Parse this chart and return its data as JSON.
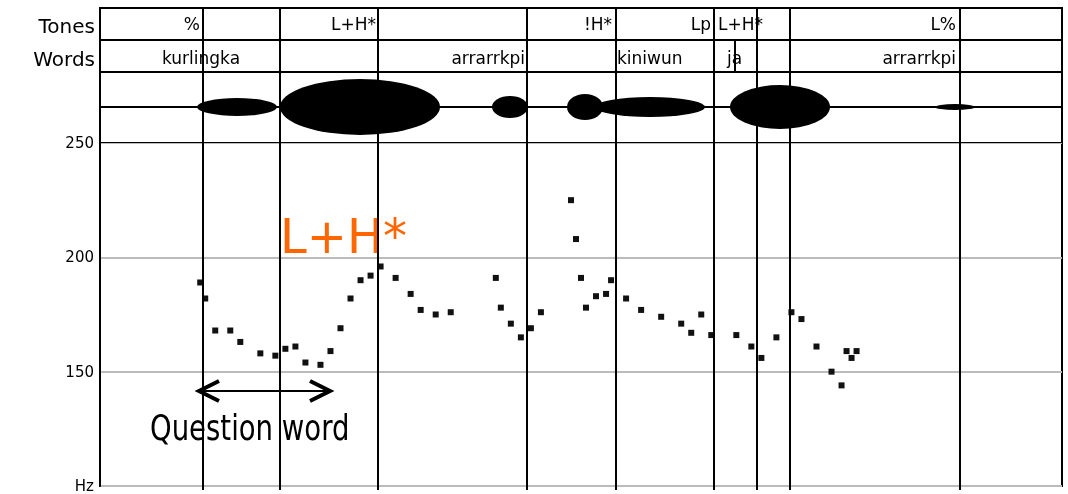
{
  "chart_data": {
    "type": "scatter",
    "categories": [
      null,
      null,
      null,
      null,
      null,
      null,
      null,
      null,
      null,
      null,
      null,
      null,
      null,
      null,
      null,
      null,
      null,
      null,
      null,
      null,
      null,
      null,
      null,
      null,
      null,
      null,
      null,
      null,
      null,
      null,
      null,
      null,
      null,
      null,
      null,
      null,
      null,
      null,
      null,
      null,
      null,
      null,
      null,
      null,
      null,
      null,
      null,
      null,
      null,
      null,
      null,
      null,
      null,
      null,
      null,
      null,
      null,
      null,
      null,
      null,
      null,
      null,
      null,
      null,
      null,
      null,
      null,
      null,
      null,
      null,
      null,
      null,
      null,
      null,
      null,
      null,
      null,
      null,
      null,
      null,
      null,
      null,
      null,
      null,
      null,
      null,
      null,
      null,
      null,
      null,
      null,
      null,
      null,
      null,
      null,
      null,
      null,
      null,
      null,
      null,
      null,
      null,
      null,
      null,
      null,
      null,
      null,
      null,
      null,
      null,
      null,
      null,
      null,
      null,
      null,
      null,
      null,
      null,
      null,
      null,
      null,
      null,
      null,
      null,
      null,
      null,
      null,
      null,
      null,
      null,
      null,
      null,
      null,
      null,
      null,
      null,
      null,
      null,
      null,
      null,
      null,
      null,
      null,
      null,
      null,
      null,
      null,
      null,
      null,
      null,
      null,
      null,
      null,
      null,
      null,
      null,
      null,
      null,
      null,
      null,
      null,
      null,
      null,
      null,
      null,
      null,
      null,
      null,
      null,
      null,
      null,
      null,
      null,
      null,
      null,
      null,
      null,
      null,
      null,
      null,
      null,
      null,
      null,
      null,
      null,
      null,
      null,
      null,
      null,
      null,
      null,
      null,
      null
    ],
    "series": [
      {
        "color": "#111111",
        "values": [
          null,
          null,
          null,
          null,
          null,
          null,
          null,
          null,
          null,
          null,
          null,
          null,
          null,
          null,
          null,
          null,
          null,
          null,
          null,
          null,
          189,
          182,
          null,
          168,
          null,
          null,
          168,
          null,
          163,
          null,
          null,
          null,
          158,
          null,
          null,
          157,
          null,
          160,
          null,
          161,
          null,
          154,
          null,
          null,
          153,
          null,
          159,
          null,
          169,
          null,
          182,
          null,
          190,
          null,
          192,
          null,
          196,
          null,
          null,
          191,
          null,
          null,
          184,
          null,
          177,
          null,
          null,
          175,
          null,
          null,
          176,
          null,
          null,
          null,
          null,
          null,
          null,
          null,
          null,
          191,
          178,
          null,
          171,
          null,
          165,
          null,
          169,
          null,
          176,
          null,
          null,
          null,
          null,
          null,
          225,
          208,
          191,
          178,
          null,
          183,
          null,
          184,
          190,
          null,
          null,
          182,
          null,
          null,
          177,
          null,
          null,
          null,
          174,
          null,
          null,
          null,
          171,
          null,
          167,
          null,
          175,
          null,
          166,
          null,
          null,
          null,
          null,
          166,
          null,
          null,
          161,
          null,
          156,
          null,
          null,
          165,
          null,
          null,
          176,
          null,
          173,
          null,
          null,
          161,
          null,
          null,
          150,
          null,
          144,
          159,
          156,
          159,
          null,
          null,
          null,
          null,
          null,
          null,
          null,
          null,
          null,
          null,
          null,
          null,
          null,
          null,
          null,
          null,
          null,
          null,
          null,
          null,
          null,
          null,
          null,
          null,
          null,
          null,
          null,
          null,
          null,
          null,
          null,
          null,
          null,
          null,
          null,
          null,
          null,
          null,
          null,
          null,
          null
        ]
      }
    ],
    "ylim": [
      100,
      250
    ],
    "yticks": [
      {
        "value": 100,
        "label": "Hz"
      },
      150,
      200,
      250
    ],
    "grid": "y",
    "marker": "square",
    "annotations": [
      "Tones",
      "Words",
      "%",
      "L+H*",
      "!H*",
      "Lp",
      "L+H*",
      "L%",
      "kurlingka",
      "arrarrkpi",
      "kiniwun",
      "ja",
      "arrarrkpi",
      "L+H*",
      "Question word"
    ]
  }
}
